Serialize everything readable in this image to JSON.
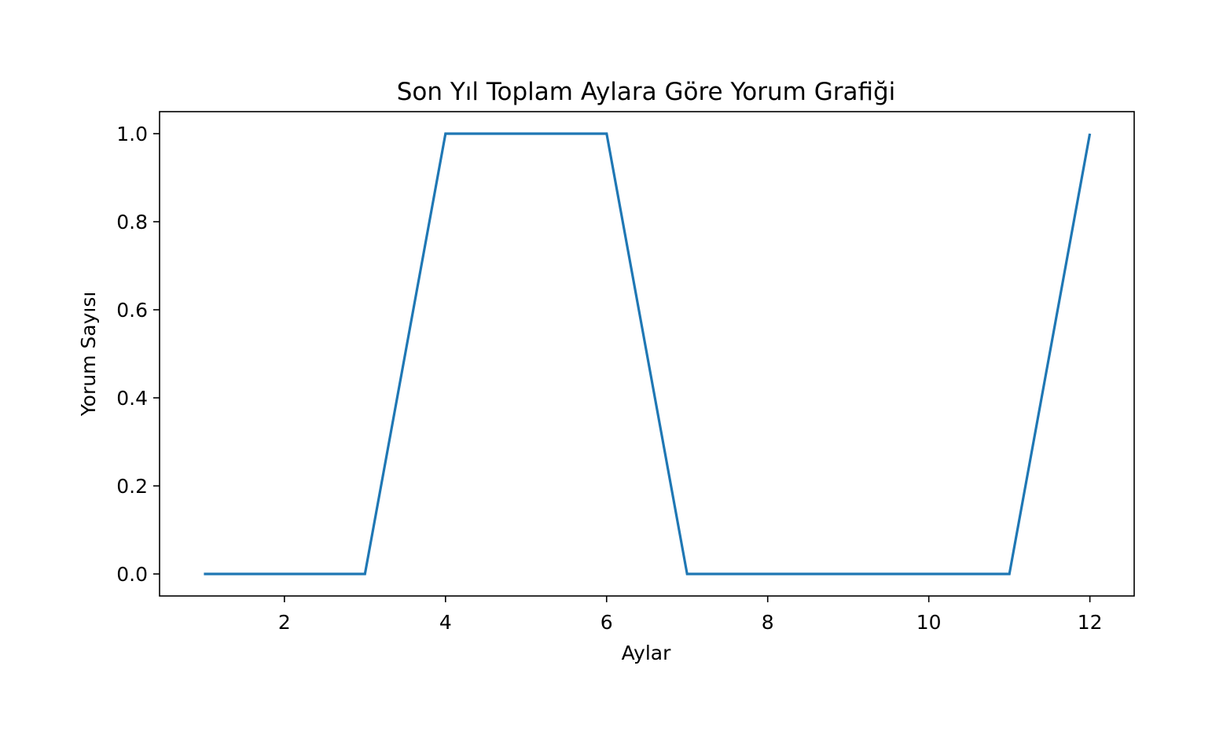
{
  "chart_data": {
    "type": "line",
    "title": "Son Yıl Toplam Aylara Göre Yorum Grafiği",
    "xlabel": "Aylar",
    "ylabel": "Yorum Sayısı",
    "x": [
      1,
      2,
      3,
      4,
      5,
      6,
      7,
      8,
      9,
      10,
      11,
      12
    ],
    "series": [
      {
        "values": [
          0,
          0,
          0,
          1,
          1,
          1,
          0,
          0,
          0,
          0,
          0,
          1
        ],
        "color": "#1f77b4"
      }
    ],
    "xlim": [
      0.45,
      12.55
    ],
    "ylim": [
      -0.05,
      1.05
    ],
    "xticks": [
      2,
      4,
      6,
      8,
      10,
      12
    ],
    "xtick_labels": [
      "2",
      "4",
      "6",
      "8",
      "10",
      "12"
    ],
    "yticks": [
      0.0,
      0.2,
      0.4,
      0.6,
      0.8,
      1.0
    ],
    "ytick_labels": [
      "0.0",
      "0.2",
      "0.4",
      "0.6",
      "0.8",
      "1.0"
    ],
    "grid": false,
    "legend": "none"
  }
}
